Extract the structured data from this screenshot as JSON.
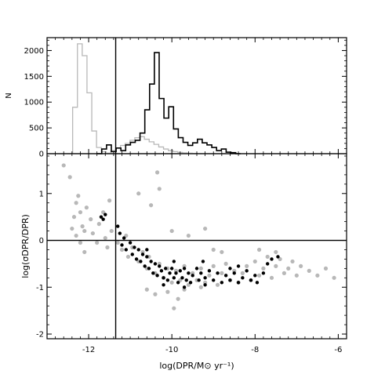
{
  "chart_data": [
    {
      "type": "histogram",
      "panel": "top",
      "ylabel": "N",
      "xlim": [
        -13,
        -5.8
      ],
      "ylim": [
        0,
        2250
      ],
      "yticks": [
        {
          "value": 0,
          "label": "0"
        },
        {
          "value": 500,
          "label": "500"
        },
        {
          "value": 1000,
          "label": "1000"
        },
        {
          "value": 1500,
          "label": "1500"
        },
        {
          "value": 2000,
          "label": "2000"
        }
      ],
      "bin_width": 0.115,
      "vertical_line_x": -11.35,
      "series": [
        {
          "color": "#b8b8b8",
          "bin_start": -12.5,
          "counts": [
            0,
            900,
            2130,
            1900,
            1180,
            440,
            120,
            40,
            10,
            60,
            110,
            160,
            200,
            260,
            310,
            330,
            280,
            230,
            180,
            130,
            90,
            60,
            40,
            25,
            15,
            10,
            5,
            0
          ]
        },
        {
          "color": "#000000",
          "bin_start": -11.8,
          "counts": [
            0,
            90,
            170,
            40,
            110,
            60,
            170,
            220,
            260,
            400,
            850,
            1350,
            1960,
            1070,
            690,
            910,
            480,
            310,
            220,
            160,
            210,
            280,
            210,
            170,
            120,
            60,
            90,
            30,
            20,
            0
          ]
        }
      ]
    },
    {
      "type": "scatter",
      "panel": "bottom",
      "xlabel": "log(DPR/M⊙ yr⁻¹)",
      "ylabel": "log(σDPR/DPR)",
      "xlim": [
        -13,
        -5.8
      ],
      "ylim": [
        -2.1,
        1.85
      ],
      "xticks": [
        {
          "value": -12,
          "label": "-12"
        },
        {
          "value": -10,
          "label": "-10"
        },
        {
          "value": -8,
          "label": "-8"
        },
        {
          "value": -6,
          "label": "-6"
        }
      ],
      "yticks": [
        {
          "value": -2,
          "label": "-2"
        },
        {
          "value": -1,
          "label": "-1"
        },
        {
          "value": 0,
          "label": "0"
        },
        {
          "value": 1,
          "label": "1"
        }
      ],
      "horizontal_line_y": 0,
      "vertical_line_x": -11.35,
      "series": [
        {
          "color": "#b8b8b8",
          "points": [
            [
              -12.25,
              0.95
            ],
            [
              -12.3,
              0.8
            ],
            [
              -12.2,
              0.6
            ],
            [
              -12.35,
              0.5
            ],
            [
              -12.15,
              0.3
            ],
            [
              -12.3,
              0.1
            ],
            [
              -12.2,
              -0.05
            ],
            [
              -12.1,
              0.2
            ],
            [
              -12.05,
              0.7
            ],
            [
              -11.95,
              0.45
            ],
            [
              -11.9,
              0.15
            ],
            [
              -11.8,
              -0.05
            ],
            [
              -11.75,
              0.35
            ],
            [
              -11.6,
              0.05
            ],
            [
              -11.55,
              -0.15
            ],
            [
              -11.45,
              0.2
            ],
            [
              -11.3,
              -0.05
            ],
            [
              -11.2,
              -0.2
            ],
            [
              -11.1,
              0.1
            ],
            [
              -11.05,
              -0.35
            ],
            [
              -10.95,
              -0.15
            ],
            [
              -10.8,
              -0.45
            ],
            [
              -10.7,
              -0.25
            ],
            [
              -10.6,
              -0.6
            ],
            [
              -10.55,
              -0.35
            ],
            [
              -10.4,
              -0.7
            ],
            [
              -10.3,
              -0.5
            ],
            [
              -10.2,
              -0.8
            ],
            [
              -10.1,
              -0.6
            ],
            [
              -10.0,
              -0.9
            ],
            [
              -9.9,
              -0.65
            ],
            [
              -9.8,
              -0.85
            ],
            [
              -9.7,
              -0.55
            ],
            [
              -9.6,
              -0.95
            ],
            [
              -9.5,
              -0.7
            ],
            [
              -9.4,
              -0.85
            ],
            [
              -9.3,
              -0.6
            ],
            [
              -9.2,
              -0.9
            ],
            [
              -9.1,
              -0.75
            ],
            [
              -9.0,
              -0.55
            ],
            [
              -8.9,
              -0.95
            ],
            [
              -8.8,
              -0.7
            ],
            [
              -8.7,
              -0.5
            ],
            [
              -8.6,
              -0.85
            ],
            [
              -8.5,
              -0.65
            ],
            [
              -8.4,
              -0.9
            ],
            [
              -8.3,
              -0.7
            ],
            [
              -8.2,
              -0.55
            ],
            [
              -8.1,
              -0.85
            ],
            [
              -8.0,
              -0.45
            ],
            [
              -7.9,
              -0.75
            ],
            [
              -7.8,
              -0.6
            ],
            [
              -7.7,
              -0.35
            ],
            [
              -7.6,
              -0.8
            ],
            [
              -7.5,
              -0.55
            ],
            [
              -7.4,
              -0.4
            ],
            [
              -7.3,
              -0.7
            ],
            [
              -7.2,
              -0.6
            ],
            [
              -7.1,
              -0.45
            ],
            [
              -7.0,
              -0.75
            ],
            [
              -6.9,
              -0.55
            ],
            [
              -6.7,
              -0.65
            ],
            [
              -6.5,
              -0.75
            ],
            [
              -6.3,
              -0.6
            ],
            [
              -6.1,
              -0.8
            ],
            [
              -10.35,
              1.45
            ],
            [
              -10.3,
              1.1
            ],
            [
              -10.8,
              1.0
            ],
            [
              -10.5,
              0.75
            ],
            [
              -12.6,
              1.6
            ],
            [
              -12.45,
              1.35
            ],
            [
              -10.6,
              -1.05
            ],
            [
              -10.4,
              -1.15
            ],
            [
              -9.95,
              -1.45
            ],
            [
              -9.85,
              -1.25
            ],
            [
              -10.1,
              -1.1
            ],
            [
              -9.7,
              -1.05
            ],
            [
              -9.3,
              -1.0
            ],
            [
              -9.0,
              -0.2
            ],
            [
              -8.8,
              -0.25
            ],
            [
              -9.6,
              0.1
            ],
            [
              -9.2,
              0.25
            ],
            [
              -10.0,
              0.2
            ],
            [
              -11.5,
              0.85
            ],
            [
              -11.65,
              0.6
            ],
            [
              -12.4,
              0.25
            ],
            [
              -12.1,
              -0.25
            ],
            [
              -7.9,
              -0.2
            ],
            [
              -7.5,
              -0.25
            ]
          ]
        },
        {
          "color": "#000000",
          "points": [
            [
              -11.7,
              0.5
            ],
            [
              -11.6,
              0.55
            ],
            [
              -11.65,
              0.45
            ],
            [
              -11.3,
              0.3
            ],
            [
              -11.25,
              0.15
            ],
            [
              -11.2,
              -0.1
            ],
            [
              -11.15,
              0.05
            ],
            [
              -11.1,
              -0.2
            ],
            [
              -11.0,
              -0.05
            ],
            [
              -10.95,
              -0.3
            ],
            [
              -10.9,
              -0.15
            ],
            [
              -10.85,
              -0.4
            ],
            [
              -10.8,
              -0.2
            ],
            [
              -10.75,
              -0.45
            ],
            [
              -10.7,
              -0.3
            ],
            [
              -10.65,
              -0.55
            ],
            [
              -10.6,
              -0.35
            ],
            [
              -10.55,
              -0.6
            ],
            [
              -10.5,
              -0.45
            ],
            [
              -10.45,
              -0.7
            ],
            [
              -10.4,
              -0.5
            ],
            [
              -10.35,
              -0.75
            ],
            [
              -10.3,
              -0.55
            ],
            [
              -10.25,
              -0.65
            ],
            [
              -10.2,
              -0.8
            ],
            [
              -10.15,
              -0.6
            ],
            [
              -10.1,
              -0.85
            ],
            [
              -10.05,
              -0.7
            ],
            [
              -10.0,
              -0.6
            ],
            [
              -9.95,
              -0.8
            ],
            [
              -9.9,
              -0.7
            ],
            [
              -9.85,
              -0.9
            ],
            [
              -9.8,
              -0.65
            ],
            [
              -9.75,
              -0.8
            ],
            [
              -9.7,
              -0.6
            ],
            [
              -9.65,
              -0.85
            ],
            [
              -9.6,
              -0.7
            ],
            [
              -9.55,
              -0.9
            ],
            [
              -9.5,
              -0.75
            ],
            [
              -9.4,
              -0.6
            ],
            [
              -9.35,
              -0.85
            ],
            [
              -9.3,
              -0.7
            ],
            [
              -9.2,
              -0.8
            ],
            [
              -9.1,
              -0.65
            ],
            [
              -9.0,
              -0.85
            ],
            [
              -8.9,
              -0.7
            ],
            [
              -8.8,
              -0.9
            ],
            [
              -8.7,
              -0.75
            ],
            [
              -8.6,
              -0.85
            ],
            [
              -8.5,
              -0.7
            ],
            [
              -8.4,
              -0.9
            ],
            [
              -8.3,
              -0.8
            ],
            [
              -8.2,
              -0.65
            ],
            [
              -8.1,
              -0.85
            ],
            [
              -8.0,
              -0.75
            ],
            [
              -7.95,
              -0.9
            ],
            [
              -7.8,
              -0.7
            ],
            [
              -7.7,
              -0.5
            ],
            [
              -7.6,
              -0.4
            ],
            [
              -7.45,
              -0.35
            ],
            [
              -10.2,
              -0.95
            ],
            [
              -9.7,
              -1.0
            ],
            [
              -9.2,
              -0.95
            ],
            [
              -8.4,
              -0.55
            ],
            [
              -8.6,
              -0.6
            ],
            [
              -10.6,
              -0.2
            ],
            [
              -9.95,
              -0.45
            ],
            [
              -9.25,
              -0.45
            ]
          ]
        }
      ]
    }
  ]
}
